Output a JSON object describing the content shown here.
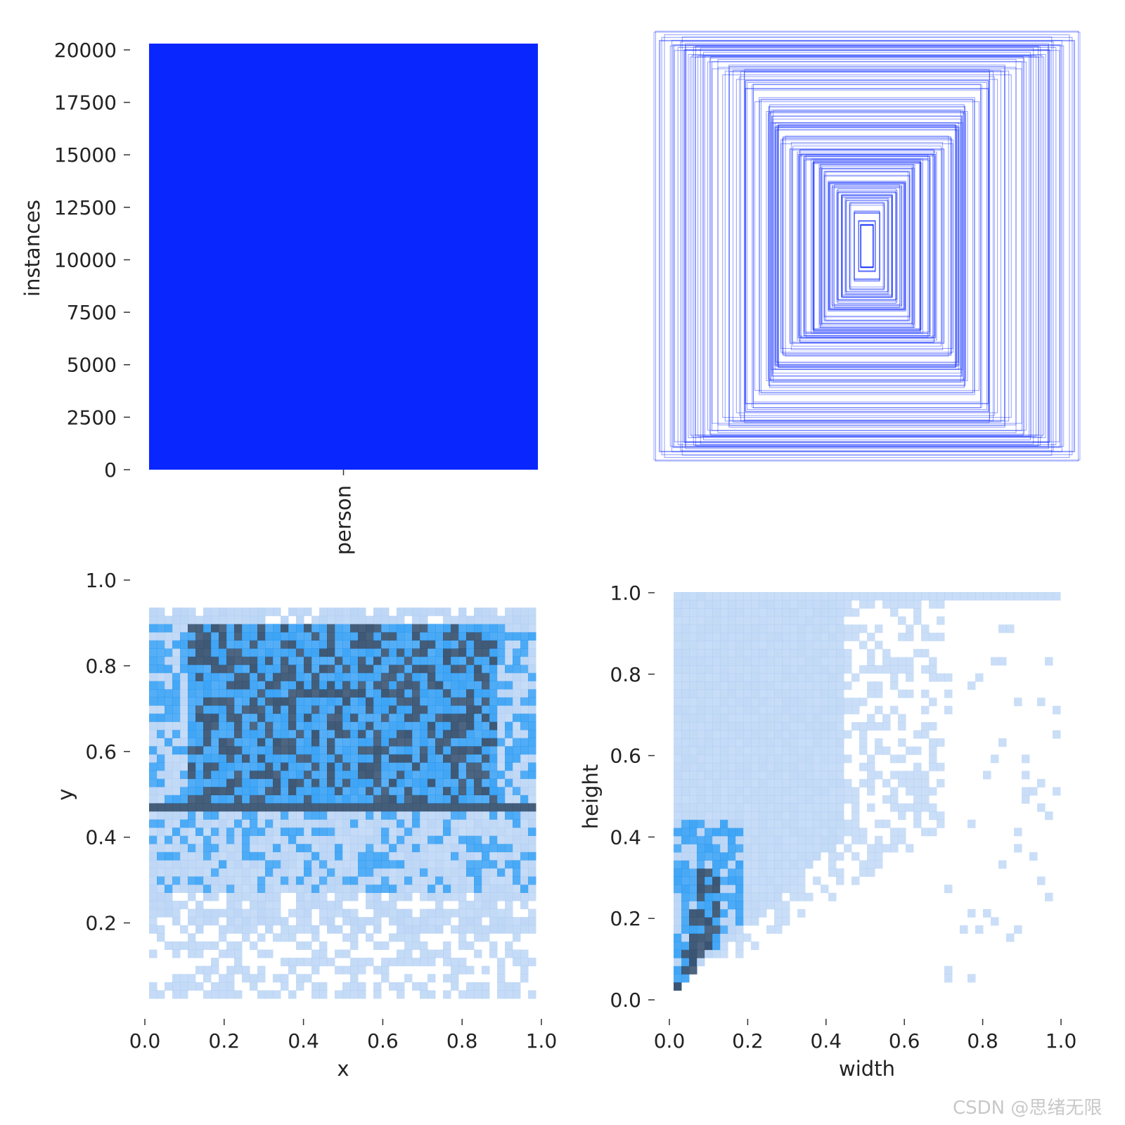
{
  "colors": {
    "bar": "#0a26ff",
    "box_stroke": "#0a26ff",
    "heat_low": "#a6c8f2",
    "heat_mid": "#2196f3",
    "heat_high": "#34506f"
  },
  "chart_data": [
    {
      "type": "bar",
      "categories": [
        "person"
      ],
      "values": [
        20300
      ],
      "ylabel": "instances",
      "ylim": [
        0,
        20300
      ],
      "yticks": [
        "0",
        "2500",
        "5000",
        "7500",
        "10000",
        "12500",
        "15000",
        "17500",
        "20000"
      ]
    },
    {
      "type": "scatter",
      "description_mode": "overlaid_boxes",
      "boxes_centered": true,
      "boxes": [
        [
          0.98,
          1.0
        ],
        [
          0.92,
          0.97
        ],
        [
          0.88,
          0.95
        ],
        [
          0.84,
          0.91
        ],
        [
          0.78,
          0.9
        ],
        [
          0.72,
          0.86
        ],
        [
          0.66,
          0.84
        ],
        [
          0.6,
          0.8
        ],
        [
          0.56,
          0.76
        ],
        [
          0.52,
          0.7
        ],
        [
          0.48,
          0.66
        ],
        [
          0.46,
          0.62
        ],
        [
          0.44,
          0.58
        ],
        [
          0.42,
          0.55
        ],
        [
          0.4,
          0.5
        ],
        [
          0.36,
          0.47
        ],
        [
          0.32,
          0.44
        ],
        [
          0.3,
          0.42
        ],
        [
          0.26,
          0.4
        ],
        [
          0.22,
          0.37
        ],
        [
          0.2,
          0.34
        ],
        [
          0.18,
          0.3
        ],
        [
          0.16,
          0.28
        ],
        [
          0.14,
          0.26
        ],
        [
          0.12,
          0.24
        ],
        [
          0.1,
          0.22
        ],
        [
          0.08,
          0.2
        ],
        [
          0.06,
          0.16
        ],
        [
          0.04,
          0.12
        ],
        [
          0.03,
          0.1
        ]
      ]
    },
    {
      "type": "heatmap",
      "xlabel": "x",
      "ylabel": "y",
      "xlim": [
        0,
        1
      ],
      "ylim": [
        0.05,
        1.0
      ],
      "xticks": [
        "0.0",
        "0.2",
        "0.4",
        "0.6",
        "0.8",
        "1.0"
      ],
      "yticks": [
        "0.2",
        "0.4",
        "0.6",
        "0.8",
        "1.0"
      ],
      "yticks_values": [
        0.2,
        0.4,
        0.6,
        0.8,
        1.0
      ],
      "bins": 50,
      "density_profile": "dense band y 0.5-0.9, medium 0.3-0.5, sparse below 0.25"
    },
    {
      "type": "heatmap",
      "xlabel": "width",
      "ylabel": "height",
      "xlim": [
        0,
        1
      ],
      "ylim": [
        0,
        1
      ],
      "xticks": [
        "0.0",
        "0.2",
        "0.4",
        "0.6",
        "0.8",
        "1.0"
      ],
      "yticks": [
        "0.0",
        "0.2",
        "0.4",
        "0.6",
        "0.8",
        "1.0"
      ],
      "yticks_values": [
        0.0,
        0.2,
        0.4,
        0.6,
        0.8,
        1.0
      ],
      "bins": 50,
      "density_profile": "concentrated near width 0.05, height 0.15; fans out toward upper-right"
    }
  ],
  "watermark": "CSDN @思绪无限"
}
